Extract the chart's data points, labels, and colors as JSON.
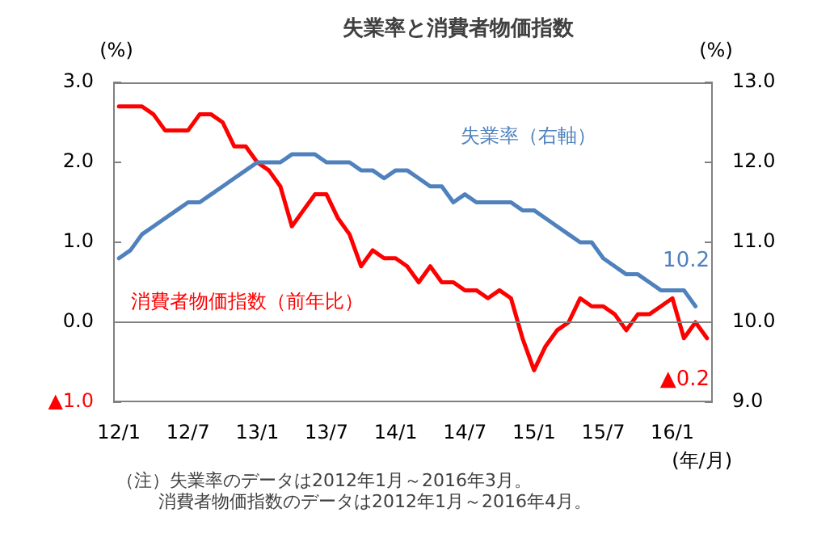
{
  "chart_data": {
    "type": "line",
    "title": "失業率と消費者物価指数",
    "categories": [
      "12/1",
      null,
      null,
      null,
      null,
      null,
      "12/7",
      null,
      null,
      null,
      null,
      null,
      "13/1",
      null,
      null,
      null,
      null,
      null,
      "13/7",
      null,
      null,
      null,
      null,
      null,
      "14/1",
      null,
      null,
      null,
      null,
      null,
      "14/7",
      null,
      null,
      null,
      null,
      null,
      "15/1",
      null,
      null,
      null,
      null,
      null,
      "15/7",
      null,
      null,
      null,
      null,
      null,
      "16/1",
      null,
      null,
      null
    ],
    "series": [
      {
        "name": "失業率（右軸）",
        "color": "#4f81bd",
        "axis": "y2",
        "values": [
          10.8,
          10.9,
          11.1,
          11.2,
          11.3,
          11.4,
          11.5,
          11.5,
          11.6,
          11.7,
          11.8,
          11.9,
          12.0,
          12.0,
          12.0,
          12.1,
          12.1,
          12.1,
          12.0,
          12.0,
          12.0,
          11.9,
          11.9,
          11.8,
          11.9,
          11.9,
          11.8,
          11.7,
          11.7,
          11.5,
          11.6,
          11.5,
          11.5,
          11.5,
          11.5,
          11.4,
          11.4,
          11.3,
          11.2,
          11.1,
          11.0,
          11.0,
          10.8,
          10.7,
          10.6,
          10.6,
          10.5,
          10.4,
          10.4,
          10.4,
          10.2,
          null
        ]
      },
      {
        "name": "消費者物価指数（前年比）",
        "color": "#ff0000",
        "values": [
          2.7,
          2.7,
          2.7,
          2.6,
          2.4,
          2.4,
          2.4,
          2.6,
          2.6,
          2.5,
          2.2,
          2.2,
          2.0,
          1.9,
          1.7,
          1.2,
          1.4,
          1.6,
          1.6,
          1.3,
          1.1,
          0.7,
          0.9,
          0.8,
          0.8,
          0.7,
          0.5,
          0.7,
          0.5,
          0.5,
          0.4,
          0.4,
          0.3,
          0.4,
          0.3,
          -0.2,
          -0.6,
          -0.3,
          -0.1,
          0.0,
          0.3,
          0.2,
          0.2,
          0.1,
          -0.1,
          0.1,
          0.1,
          0.2,
          0.3,
          -0.2,
          0.0,
          -0.2
        ]
      }
    ],
    "ylabel": "(%)",
    "y2label": "(%)",
    "xlabel": "(年/月)",
    "ylim": [
      -1,
      3
    ],
    "yticks": [
      {
        "value": -1,
        "label": "▲1.0"
      },
      {
        "value": 0,
        "label": "0.0"
      },
      {
        "value": 1,
        "label": "1.0"
      },
      {
        "value": 2,
        "label": "2.0"
      },
      {
        "value": 3,
        "label": "3.0"
      }
    ],
    "y2lim": [
      9,
      13
    ],
    "y2ticks": [
      {
        "value": 9,
        "label": "9.0"
      },
      {
        "value": 10,
        "label": "10.0"
      },
      {
        "value": 11,
        "label": "11.0"
      },
      {
        "value": 12,
        "label": "12.0"
      },
      {
        "value": 13,
        "label": "13.0"
      }
    ],
    "ref_lines": [
      {
        "axis": "y",
        "value": 0,
        "color": "#808080"
      }
    ],
    "annotations": [
      "10.2",
      "▲0.2",
      "（注）失業率のデータは2012年1月～2016年3月。",
      "消費者物価指数のデータは2012年1月～2016年4月。"
    ],
    "grid": false,
    "legend": false,
    "marker": "none",
    "line_style": "solid"
  }
}
